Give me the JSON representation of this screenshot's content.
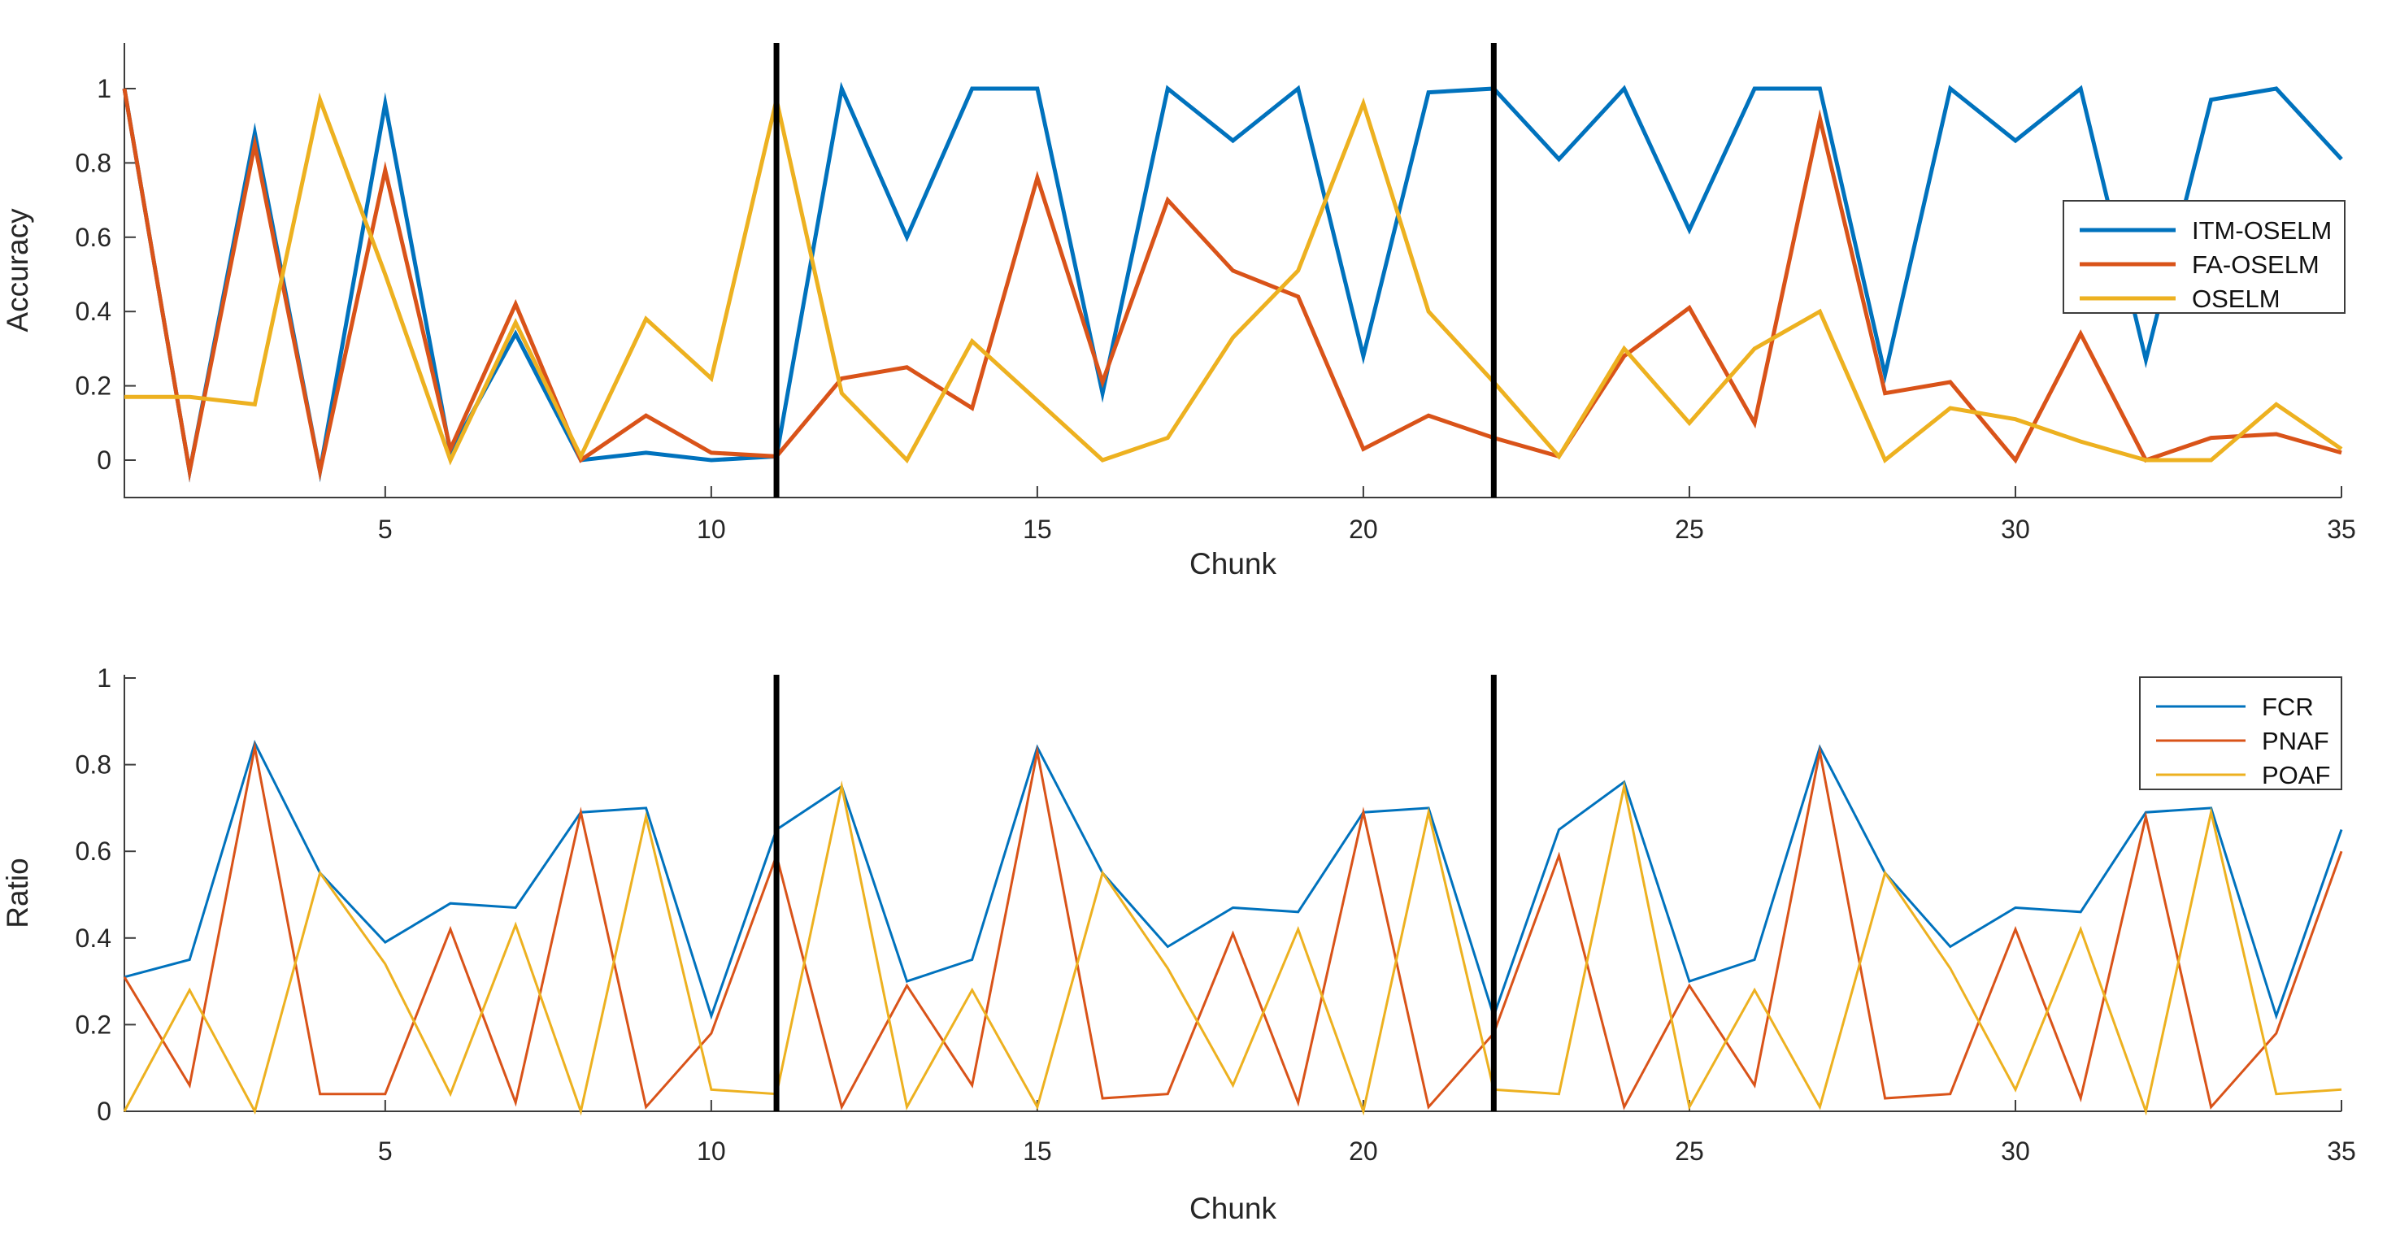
{
  "figure": {
    "background": "#ffffff",
    "description": "MATLAB-style figure with two stacked line subplots sharing Chunk x-axis, with two vertical black event lines at chunks 11 and 22"
  },
  "colors": {
    "series_blue": "#0072BD",
    "series_orange": "#D95319",
    "series_yellow": "#EDB120",
    "event_line": "#000000",
    "axis": "#3c3c3c",
    "legend_border": "#3c3c3c",
    "legend_background": "#ffffff"
  },
  "chart_data": [
    {
      "type": "line",
      "title": "",
      "xlabel": "Chunk",
      "ylabel": "Accuracy",
      "xlim": [
        1,
        35
      ],
      "ylim": [
        -0.1,
        1.12
      ],
      "xticks": [
        5,
        10,
        15,
        20,
        25,
        30,
        35
      ],
      "yticks": [
        0,
        0.2,
        0.4,
        0.6,
        0.8,
        1
      ],
      "ytick_labels": [
        "0",
        "0.2",
        "0.4",
        "0.6",
        "0.8",
        "1"
      ],
      "grid": false,
      "legend_position": "right-middle-inside",
      "vertical_lines_x": [
        11,
        22
      ],
      "x": [
        1,
        2,
        3,
        4,
        5,
        6,
        7,
        8,
        9,
        10,
        11,
        12,
        13,
        14,
        15,
        16,
        17,
        18,
        19,
        20,
        21,
        22,
        23,
        24,
        25,
        26,
        27,
        28,
        29,
        30,
        31,
        32,
        33,
        34,
        35
      ],
      "series": [
        {
          "name": "ITM-OSELM",
          "color_key": "series_blue",
          "values": [
            1.0,
            -0.03,
            0.88,
            -0.03,
            0.96,
            0.02,
            0.34,
            0.0,
            0.02,
            0.0,
            0.01,
            1.0,
            0.6,
            1.0,
            1.0,
            0.18,
            1.0,
            0.86,
            1.0,
            0.28,
            0.99,
            1.0,
            0.81,
            1.0,
            0.62,
            1.0,
            1.0,
            0.23,
            1.0,
            0.86,
            1.0,
            0.27,
            0.97,
            1.0,
            0.81
          ]
        },
        {
          "name": "FA-OSELM",
          "color_key": "series_orange",
          "values": [
            1.0,
            -0.03,
            0.85,
            -0.03,
            0.78,
            0.03,
            0.42,
            0.0,
            0.12,
            0.02,
            0.01,
            0.22,
            0.25,
            0.14,
            0.76,
            0.21,
            0.7,
            0.51,
            0.44,
            0.03,
            0.12,
            0.06,
            0.01,
            0.28,
            0.41,
            0.1,
            0.92,
            0.18,
            0.21,
            0.0,
            0.34,
            0.0,
            0.06,
            0.07,
            0.02
          ]
        },
        {
          "name": "OSELM",
          "color_key": "series_yellow",
          "values": [
            0.17,
            0.17,
            0.15,
            0.97,
            0.5,
            0.0,
            0.37,
            0.01,
            0.38,
            0.22,
            0.97,
            0.18,
            0.0,
            0.32,
            0.16,
            0.0,
            0.06,
            0.33,
            0.51,
            0.96,
            0.4,
            0.21,
            0.01,
            0.3,
            0.1,
            0.3,
            0.4,
            0.0,
            0.14,
            0.11,
            0.05,
            0.0,
            0.0,
            0.15,
            0.03
          ]
        }
      ]
    },
    {
      "type": "line",
      "title": "",
      "xlabel": "Chunk",
      "ylabel": "Ratio",
      "xlim": [
        1,
        35
      ],
      "ylim": [
        0,
        1
      ],
      "xticks": [
        5,
        10,
        15,
        20,
        25,
        30,
        35
      ],
      "yticks": [
        0,
        0.2,
        0.4,
        0.6,
        0.8,
        1
      ],
      "ytick_labels": [
        "0",
        "0.2",
        "0.4",
        "0.6",
        "0.8",
        "1"
      ],
      "grid": false,
      "legend_position": "top-right-inside",
      "vertical_lines_x": [
        11,
        22
      ],
      "x": [
        1,
        2,
        3,
        4,
        5,
        6,
        7,
        8,
        9,
        10,
        11,
        12,
        13,
        14,
        15,
        16,
        17,
        18,
        19,
        20,
        21,
        22,
        23,
        24,
        25,
        26,
        27,
        28,
        29,
        30,
        31,
        32,
        33,
        34,
        35
      ],
      "series": [
        {
          "name": "FCR",
          "color_key": "series_blue",
          "values": [
            0.31,
            0.35,
            0.85,
            0.55,
            0.39,
            0.48,
            0.47,
            0.69,
            0.7,
            0.22,
            0.65,
            0.75,
            0.3,
            0.35,
            0.84,
            0.55,
            0.38,
            0.47,
            0.46,
            0.69,
            0.7,
            0.22,
            0.65,
            0.76,
            0.3,
            0.35,
            0.84,
            0.55,
            0.38,
            0.47,
            0.46,
            0.69,
            0.7,
            0.22,
            0.65
          ]
        },
        {
          "name": "PNAF",
          "color_key": "series_orange",
          "values": [
            0.31,
            0.06,
            0.84,
            0.04,
            0.04,
            0.42,
            0.02,
            0.69,
            0.01,
            0.18,
            0.59,
            0.01,
            0.29,
            0.06,
            0.83,
            0.03,
            0.04,
            0.41,
            0.02,
            0.69,
            0.01,
            0.18,
            0.59,
            0.01,
            0.29,
            0.06,
            0.83,
            0.03,
            0.04,
            0.42,
            0.03,
            0.68,
            0.01,
            0.18,
            0.6
          ]
        },
        {
          "name": "POAF",
          "color_key": "series_yellow",
          "values": [
            0.0,
            0.28,
            0.0,
            0.55,
            0.34,
            0.04,
            0.43,
            0.0,
            0.68,
            0.05,
            0.04,
            0.75,
            0.01,
            0.28,
            0.01,
            0.55,
            0.33,
            0.06,
            0.42,
            0.0,
            0.69,
            0.05,
            0.04,
            0.75,
            0.01,
            0.28,
            0.01,
            0.55,
            0.33,
            0.05,
            0.42,
            0.0,
            0.69,
            0.04,
            0.05
          ]
        }
      ]
    }
  ]
}
